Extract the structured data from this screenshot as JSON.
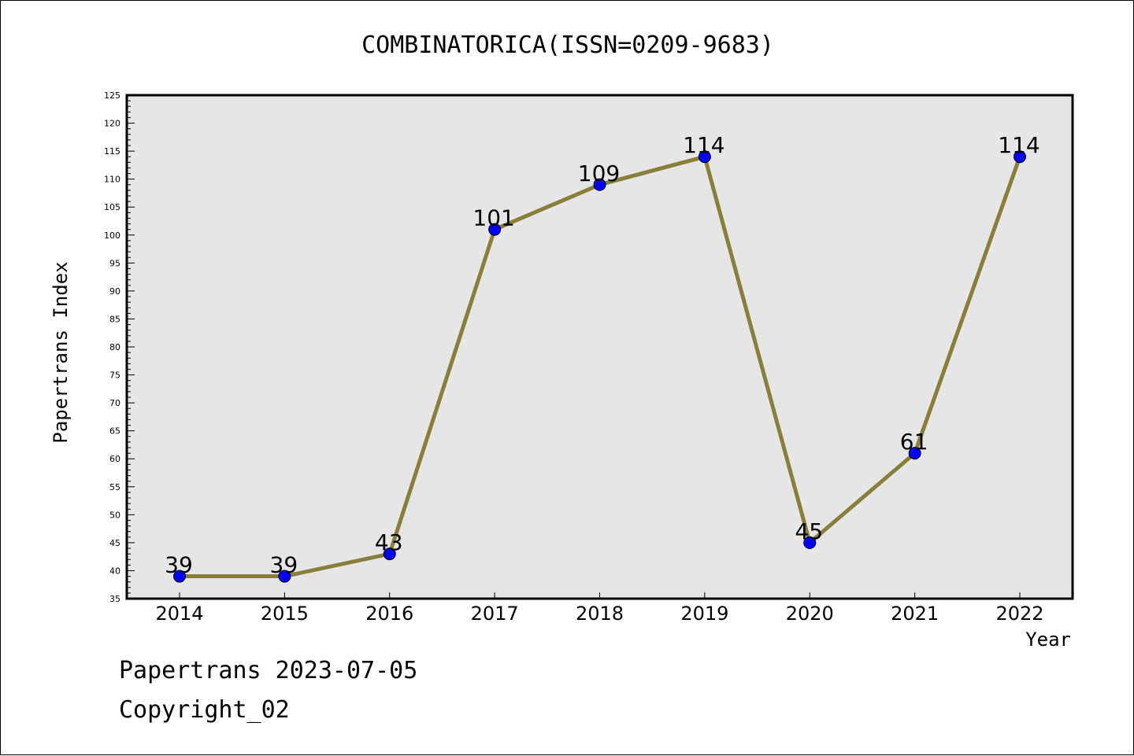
{
  "chart_data": {
    "type": "line",
    "title": "COMBINATORICA(ISSN=0209-9683)",
    "xlabel": "Year",
    "ylabel": "Papertrans Index",
    "categories": [
      "2014",
      "2015",
      "2016",
      "2017",
      "2018",
      "2019",
      "2020",
      "2021",
      "2022"
    ],
    "series": [
      {
        "values": [
          39,
          39,
          43,
          101,
          109,
          114,
          45,
          61,
          114
        ]
      }
    ],
    "ylim": [
      35,
      125
    ],
    "ytick_step": 5,
    "ytick_labels": [
      "35",
      "40",
      "45",
      "50",
      "55",
      "60",
      "65",
      "70",
      "75",
      "80",
      "85",
      "90",
      "95",
      "100",
      "105",
      "110",
      "115",
      "120",
      "125"
    ],
    "data_labels": [
      "39",
      "39",
      "43",
      "101",
      "109",
      "114",
      "45",
      "61",
      "114"
    ],
    "grid": false,
    "legend": "none",
    "colors": {
      "line": "#8b7d3a",
      "marker": "#0000ff",
      "plot_background": "#e6e6e6"
    }
  },
  "footer": {
    "line1": "Papertrans 2023-07-05",
    "line2": "Copyright_02"
  }
}
